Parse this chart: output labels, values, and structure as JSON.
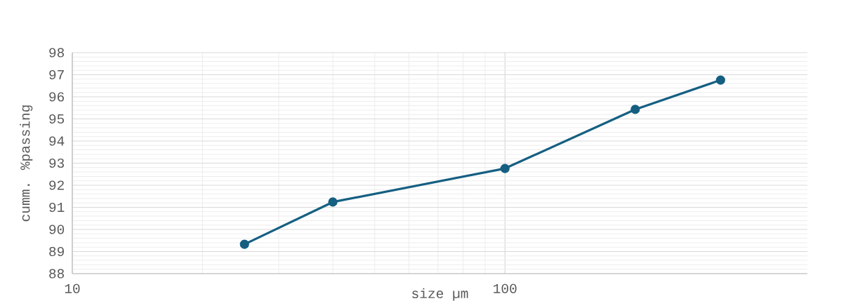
{
  "chart_data": {
    "type": "line",
    "xlabel": "size µm",
    "ylabel": "cumm. %passing",
    "log": "x",
    "x": [
      25,
      40,
      100,
      200,
      315
    ],
    "series": [
      {
        "color": "#155f82",
        "values": [
          89.33,
          91.24,
          92.76,
          95.43,
          96.76
        ]
      }
    ],
    "xlim": [
      10,
      500
    ],
    "xticks": [
      10,
      100
    ],
    "ylim": [
      88,
      98
    ],
    "yticks": [
      88,
      89,
      90,
      91,
      92,
      93,
      94,
      95,
      96,
      97,
      98
    ],
    "grid": true,
    "marker": "circle",
    "line_style": "solid"
  }
}
